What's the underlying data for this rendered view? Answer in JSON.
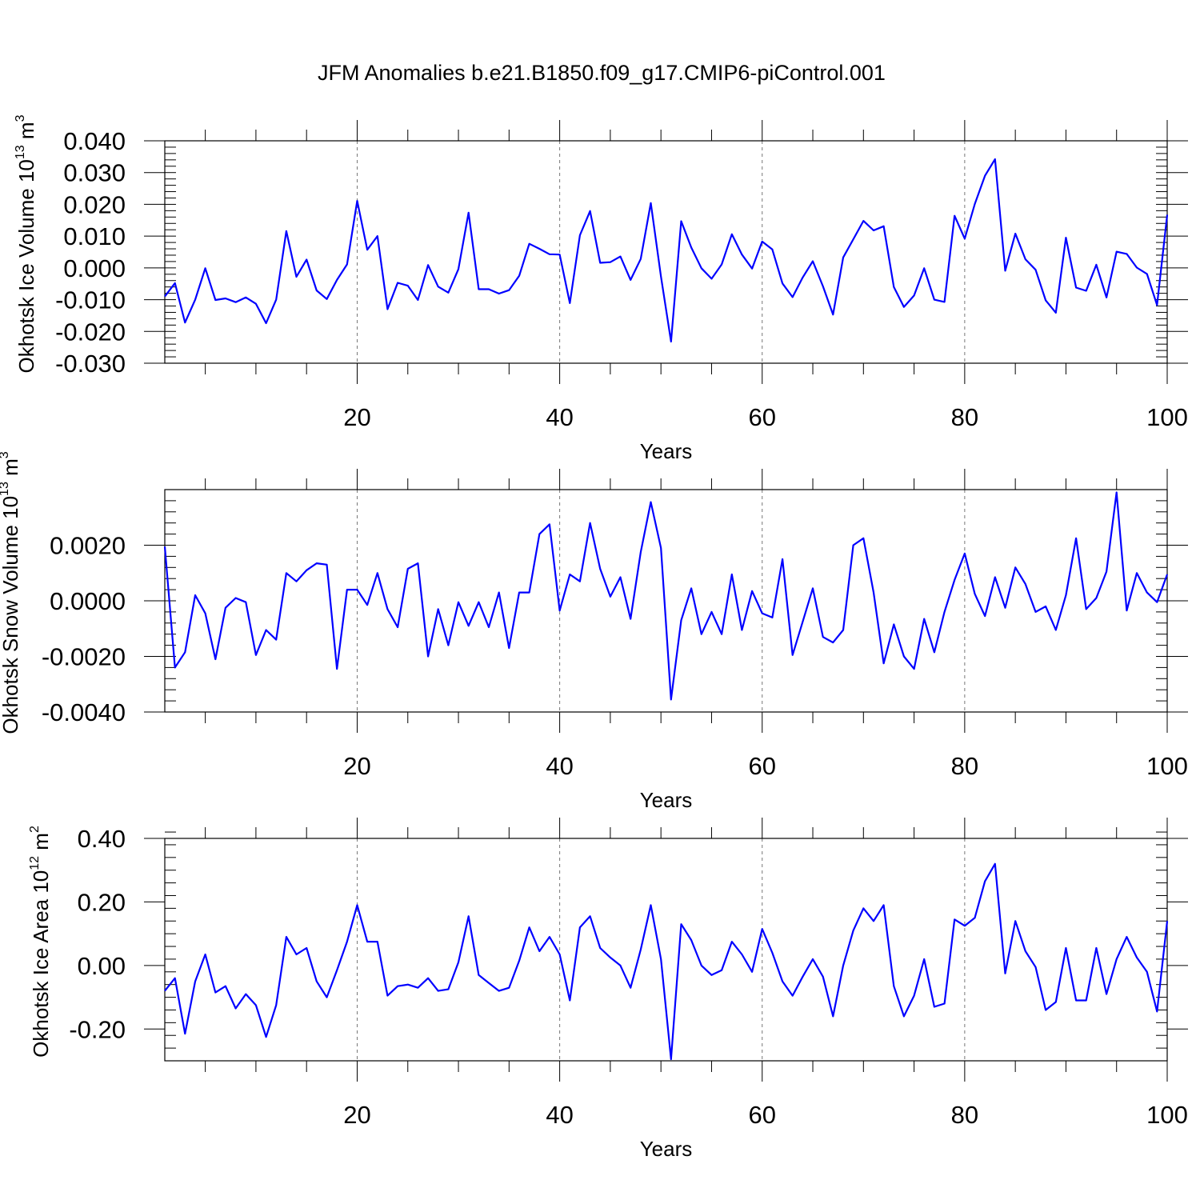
{
  "title": "JFM Anomalies b.e21.B1850.f09_g17.CMIP6-piControl.001",
  "colors": {
    "line": "#0000ff",
    "axis": "#000000",
    "grid": "#777777",
    "background": "#ffffff"
  },
  "chart_data": [
    {
      "type": "line",
      "ylabel": "Okhotsk Ice Volume 10",
      "ylabel_exp": "13",
      "ylabel_unit": " m",
      "ylabel_unit_exp": "3",
      "xlabel": "Years",
      "xlim": [
        1,
        100
      ],
      "ylim": [
        -0.03,
        0.04
      ],
      "yticks": [
        -0.03,
        -0.02,
        -0.01,
        0.0,
        0.01,
        0.02,
        0.03,
        0.04
      ],
      "ytick_labels": [
        "-0.030",
        "-0.020",
        "-0.010",
        "0.000",
        "0.010",
        "0.020",
        "0.030",
        "0.040"
      ],
      "xticks": [
        20,
        40,
        60,
        80,
        100
      ],
      "xtick_labels": [
        "20",
        "40",
        "60",
        "80",
        "100"
      ],
      "grid_x": [
        20,
        40,
        60,
        80
      ],
      "series": [
        {
          "name": "Okhotsk Ice Volume",
          "values": [
            -0.009,
            -0.0048,
            -0.0172,
            -0.01,
            -0.0001,
            -0.0101,
            -0.0096,
            -0.0108,
            -0.0093,
            -0.0113,
            -0.0174,
            -0.01,
            0.0116,
            -0.0028,
            0.0026,
            -0.0071,
            -0.0098,
            -0.0038,
            0.0011,
            0.0211,
            0.0057,
            0.01,
            -0.013,
            -0.0047,
            -0.0056,
            -0.0101,
            0.0009,
            -0.0059,
            -0.0078,
            -0.0004,
            0.0174,
            -0.0067,
            -0.0067,
            -0.0081,
            -0.007,
            -0.0025,
            0.0076,
            0.006,
            0.0043,
            0.0042,
            -0.0111,
            0.0103,
            0.0179,
            0.0016,
            0.0018,
            0.0036,
            -0.0038,
            0.0028,
            0.0204,
            -0.0027,
            -0.0232,
            0.0147,
            0.0064,
            -0.0001,
            -0.0034,
            0.0011,
            0.0106,
            0.0042,
            -0.0002,
            0.0083,
            0.0058,
            -0.0049,
            -0.0092,
            -0.003,
            0.0021,
            -0.0058,
            -0.0147,
            0.0033,
            0.009,
            0.0148,
            0.0118,
            0.0131,
            -0.006,
            -0.0123,
            -0.0087,
            -0.0001,
            -0.01,
            -0.0107,
            0.0164,
            0.0092,
            0.0201,
            0.029,
            0.0342,
            -0.0009,
            0.0108,
            0.0027,
            -0.0006,
            -0.0102,
            -0.0141,
            0.0095,
            -0.0062,
            -0.0072,
            0.001,
            -0.0093,
            0.0051,
            0.0044,
            0.0001,
            -0.0019,
            -0.0117,
            0.0167
          ]
        }
      ]
    },
    {
      "type": "line",
      "ylabel": "Okhotsk Snow Volume 10",
      "ylabel_exp": "13",
      "ylabel_unit": " m",
      "ylabel_unit_exp": "3",
      "xlabel": "Years",
      "xlim": [
        1,
        100
      ],
      "ylim": [
        -0.004,
        0.004
      ],
      "yticks": [
        -0.004,
        -0.002,
        0.0,
        0.002
      ],
      "ytick_labels": [
        "-0.0040",
        "-0.0020",
        "0.0000",
        "0.0020"
      ],
      "xticks": [
        20,
        40,
        60,
        80,
        100
      ],
      "xtick_labels": [
        "20",
        "40",
        "60",
        "80",
        "100"
      ],
      "grid_x": [
        20,
        40,
        60,
        80
      ],
      "series": [
        {
          "name": "Okhotsk Snow Volume",
          "values": [
            0.00195,
            -0.0024,
            -0.00185,
            0.0002,
            -0.00045,
            -0.0021,
            -0.00025,
            0.0001,
            -5e-05,
            -0.00195,
            -0.00105,
            -0.0014,
            0.001,
            0.0007,
            0.0011,
            0.00135,
            0.0013,
            -0.00245,
            0.0004,
            0.0004,
            -0.00015,
            0.001,
            -0.0003,
            -0.00095,
            0.00115,
            0.00135,
            -0.002,
            -0.0003,
            -0.0016,
            -5e-05,
            -0.0009,
            -5e-05,
            -0.00095,
            0.0003,
            -0.0017,
            0.0003,
            0.0003,
            0.0024,
            0.00275,
            -0.00035,
            0.00095,
            0.0007,
            0.0028,
            0.00115,
            0.00015,
            0.00085,
            -0.00065,
            0.00175,
            0.00355,
            0.0019,
            -0.00355,
            -0.0007,
            0.00045,
            -0.0012,
            -0.0004,
            -0.0012,
            0.00095,
            -0.00105,
            0.00035,
            -0.00045,
            -0.0006,
            0.0015,
            -0.00195,
            -0.00075,
            0.00045,
            -0.0013,
            -0.0015,
            -0.00105,
            0.002,
            0.00225,
            0.0003,
            -0.00225,
            -0.00085,
            -0.002,
            -0.00245,
            -0.00065,
            -0.00185,
            -0.0004,
            0.00075,
            0.0017,
            0.00025,
            -0.00055,
            0.00085,
            -0.00025,
            0.0012,
            0.0006,
            -0.0004,
            -0.0002,
            -0.00105,
            0.0002,
            0.00225,
            -0.0003,
            0.0001,
            0.00105,
            0.0039,
            -0.00035,
            0.001,
            0.0003,
            -5e-05,
            0.00095
          ]
        }
      ]
    },
    {
      "type": "line",
      "ylabel": "Okhotsk Ice Area 10",
      "ylabel_exp": "12",
      "ylabel_unit": " m",
      "ylabel_unit_exp": "2",
      "xlabel": "Years",
      "xlim": [
        1,
        100
      ],
      "ylim": [
        -0.3,
        0.4
      ],
      "yticks": [
        -0.2,
        0.0,
        0.2,
        0.4
      ],
      "ytick_labels": [
        "-0.20",
        "0.00",
        "0.20",
        "0.40"
      ],
      "xticks": [
        20,
        40,
        60,
        80,
        100
      ],
      "xtick_labels": [
        "20",
        "40",
        "60",
        "80",
        "100"
      ],
      "grid_x": [
        20,
        40,
        60,
        80
      ],
      "series": [
        {
          "name": "Okhotsk Ice Area",
          "values": [
            -0.08,
            -0.04,
            -0.215,
            -0.05,
            0.035,
            -0.085,
            -0.065,
            -0.135,
            -0.09,
            -0.125,
            -0.225,
            -0.125,
            0.09,
            0.035,
            0.055,
            -0.05,
            -0.1,
            -0.015,
            0.075,
            0.19,
            0.075,
            0.075,
            -0.095,
            -0.065,
            -0.06,
            -0.07,
            -0.04,
            -0.08,
            -0.075,
            0.01,
            0.155,
            -0.03,
            -0.055,
            -0.08,
            -0.07,
            0.015,
            0.12,
            0.045,
            0.09,
            0.035,
            -0.11,
            0.12,
            0.155,
            0.055,
            0.025,
            0.0,
            -0.07,
            0.05,
            0.19,
            0.02,
            -0.295,
            0.13,
            0.08,
            0.0,
            -0.03,
            -0.015,
            0.075,
            0.035,
            -0.02,
            0.115,
            0.04,
            -0.05,
            -0.095,
            -0.035,
            0.02,
            -0.035,
            -0.16,
            0.0,
            0.11,
            0.18,
            0.14,
            0.19,
            -0.065,
            -0.16,
            -0.095,
            0.02,
            -0.13,
            -0.12,
            0.145,
            0.125,
            0.15,
            0.265,
            0.32,
            -0.025,
            0.14,
            0.045,
            -0.005,
            -0.14,
            -0.115,
            0.055,
            -0.11,
            -0.11,
            0.055,
            -0.09,
            0.02,
            0.09,
            0.025,
            -0.02,
            -0.145,
            0.14
          ]
        }
      ]
    }
  ]
}
